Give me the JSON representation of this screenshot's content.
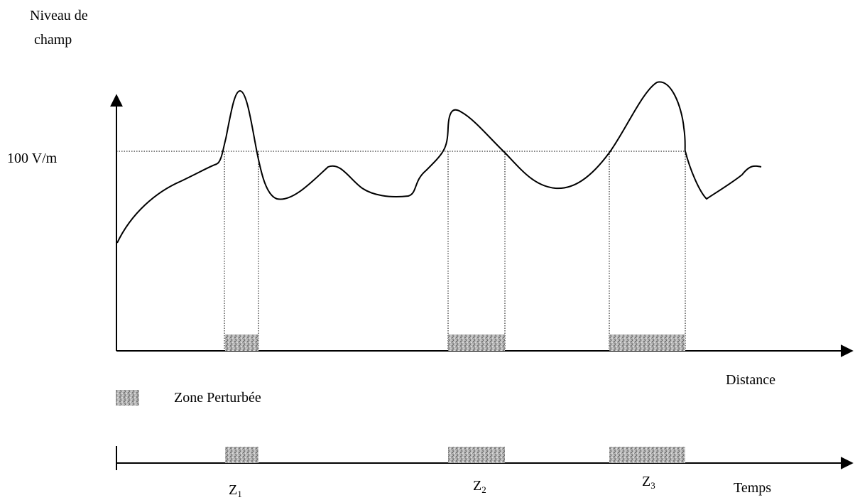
{
  "labels": {
    "y_axis_line1": "Niveau de",
    "y_axis_line2": "champ",
    "threshold": "100 V/m",
    "x_axis": "Distance",
    "legend": "Zone Perturbée",
    "time_axis": "Temps"
  },
  "zones": [
    {
      "letter": "Z",
      "index": "1"
    },
    {
      "letter": "Z",
      "index": "2"
    },
    {
      "letter": "Z",
      "index": "3"
    }
  ],
  "colors": {
    "line": "#000000",
    "zone_fill": "#a8a8a8"
  }
}
